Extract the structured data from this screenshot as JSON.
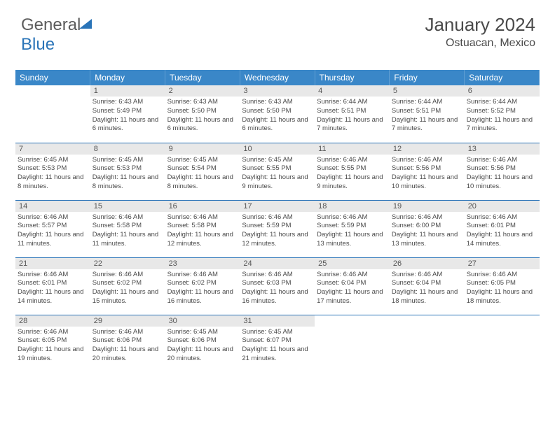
{
  "logo": {
    "part1": "General",
    "part2": "Blue"
  },
  "header": {
    "title": "January 2024",
    "location": "Ostuacan, Mexico"
  },
  "style": {
    "header_bg": "#3a87c8",
    "header_text": "#ffffff",
    "daynum_bg": "#e8e8e8",
    "daynum_text": "#555555",
    "body_text": "#4a4a4a",
    "row_border": "#2a74b8",
    "logo_gray": "#5c5c5c",
    "logo_blue": "#2a74b8",
    "title_fontsize": 26,
    "location_fontsize": 16,
    "dayhead_fontsize": 12,
    "daynum_fontsize": 11,
    "daytext_fontsize": 9.5
  },
  "dayHeaders": [
    "Sunday",
    "Monday",
    "Tuesday",
    "Wednesday",
    "Thursday",
    "Friday",
    "Saturday"
  ],
  "weeks": [
    [
      {
        "num": "",
        "sunrise": "",
        "sunset": "",
        "daylight": ""
      },
      {
        "num": "1",
        "sunrise": "Sunrise: 6:43 AM",
        "sunset": "Sunset: 5:49 PM",
        "daylight": "Daylight: 11 hours and 6 minutes."
      },
      {
        "num": "2",
        "sunrise": "Sunrise: 6:43 AM",
        "sunset": "Sunset: 5:50 PM",
        "daylight": "Daylight: 11 hours and 6 minutes."
      },
      {
        "num": "3",
        "sunrise": "Sunrise: 6:43 AM",
        "sunset": "Sunset: 5:50 PM",
        "daylight": "Daylight: 11 hours and 6 minutes."
      },
      {
        "num": "4",
        "sunrise": "Sunrise: 6:44 AM",
        "sunset": "Sunset: 5:51 PM",
        "daylight": "Daylight: 11 hours and 7 minutes."
      },
      {
        "num": "5",
        "sunrise": "Sunrise: 6:44 AM",
        "sunset": "Sunset: 5:51 PM",
        "daylight": "Daylight: 11 hours and 7 minutes."
      },
      {
        "num": "6",
        "sunrise": "Sunrise: 6:44 AM",
        "sunset": "Sunset: 5:52 PM",
        "daylight": "Daylight: 11 hours and 7 minutes."
      }
    ],
    [
      {
        "num": "7",
        "sunrise": "Sunrise: 6:45 AM",
        "sunset": "Sunset: 5:53 PM",
        "daylight": "Daylight: 11 hours and 8 minutes."
      },
      {
        "num": "8",
        "sunrise": "Sunrise: 6:45 AM",
        "sunset": "Sunset: 5:53 PM",
        "daylight": "Daylight: 11 hours and 8 minutes."
      },
      {
        "num": "9",
        "sunrise": "Sunrise: 6:45 AM",
        "sunset": "Sunset: 5:54 PM",
        "daylight": "Daylight: 11 hours and 8 minutes."
      },
      {
        "num": "10",
        "sunrise": "Sunrise: 6:45 AM",
        "sunset": "Sunset: 5:55 PM",
        "daylight": "Daylight: 11 hours and 9 minutes."
      },
      {
        "num": "11",
        "sunrise": "Sunrise: 6:46 AM",
        "sunset": "Sunset: 5:55 PM",
        "daylight": "Daylight: 11 hours and 9 minutes."
      },
      {
        "num": "12",
        "sunrise": "Sunrise: 6:46 AM",
        "sunset": "Sunset: 5:56 PM",
        "daylight": "Daylight: 11 hours and 10 minutes."
      },
      {
        "num": "13",
        "sunrise": "Sunrise: 6:46 AM",
        "sunset": "Sunset: 5:56 PM",
        "daylight": "Daylight: 11 hours and 10 minutes."
      }
    ],
    [
      {
        "num": "14",
        "sunrise": "Sunrise: 6:46 AM",
        "sunset": "Sunset: 5:57 PM",
        "daylight": "Daylight: 11 hours and 11 minutes."
      },
      {
        "num": "15",
        "sunrise": "Sunrise: 6:46 AM",
        "sunset": "Sunset: 5:58 PM",
        "daylight": "Daylight: 11 hours and 11 minutes."
      },
      {
        "num": "16",
        "sunrise": "Sunrise: 6:46 AM",
        "sunset": "Sunset: 5:58 PM",
        "daylight": "Daylight: 11 hours and 12 minutes."
      },
      {
        "num": "17",
        "sunrise": "Sunrise: 6:46 AM",
        "sunset": "Sunset: 5:59 PM",
        "daylight": "Daylight: 11 hours and 12 minutes."
      },
      {
        "num": "18",
        "sunrise": "Sunrise: 6:46 AM",
        "sunset": "Sunset: 5:59 PM",
        "daylight": "Daylight: 11 hours and 13 minutes."
      },
      {
        "num": "19",
        "sunrise": "Sunrise: 6:46 AM",
        "sunset": "Sunset: 6:00 PM",
        "daylight": "Daylight: 11 hours and 13 minutes."
      },
      {
        "num": "20",
        "sunrise": "Sunrise: 6:46 AM",
        "sunset": "Sunset: 6:01 PM",
        "daylight": "Daylight: 11 hours and 14 minutes."
      }
    ],
    [
      {
        "num": "21",
        "sunrise": "Sunrise: 6:46 AM",
        "sunset": "Sunset: 6:01 PM",
        "daylight": "Daylight: 11 hours and 14 minutes."
      },
      {
        "num": "22",
        "sunrise": "Sunrise: 6:46 AM",
        "sunset": "Sunset: 6:02 PM",
        "daylight": "Daylight: 11 hours and 15 minutes."
      },
      {
        "num": "23",
        "sunrise": "Sunrise: 6:46 AM",
        "sunset": "Sunset: 6:02 PM",
        "daylight": "Daylight: 11 hours and 16 minutes."
      },
      {
        "num": "24",
        "sunrise": "Sunrise: 6:46 AM",
        "sunset": "Sunset: 6:03 PM",
        "daylight": "Daylight: 11 hours and 16 minutes."
      },
      {
        "num": "25",
        "sunrise": "Sunrise: 6:46 AM",
        "sunset": "Sunset: 6:04 PM",
        "daylight": "Daylight: 11 hours and 17 minutes."
      },
      {
        "num": "26",
        "sunrise": "Sunrise: 6:46 AM",
        "sunset": "Sunset: 6:04 PM",
        "daylight": "Daylight: 11 hours and 18 minutes."
      },
      {
        "num": "27",
        "sunrise": "Sunrise: 6:46 AM",
        "sunset": "Sunset: 6:05 PM",
        "daylight": "Daylight: 11 hours and 18 minutes."
      }
    ],
    [
      {
        "num": "28",
        "sunrise": "Sunrise: 6:46 AM",
        "sunset": "Sunset: 6:05 PM",
        "daylight": "Daylight: 11 hours and 19 minutes."
      },
      {
        "num": "29",
        "sunrise": "Sunrise: 6:46 AM",
        "sunset": "Sunset: 6:06 PM",
        "daylight": "Daylight: 11 hours and 20 minutes."
      },
      {
        "num": "30",
        "sunrise": "Sunrise: 6:45 AM",
        "sunset": "Sunset: 6:06 PM",
        "daylight": "Daylight: 11 hours and 20 minutes."
      },
      {
        "num": "31",
        "sunrise": "Sunrise: 6:45 AM",
        "sunset": "Sunset: 6:07 PM",
        "daylight": "Daylight: 11 hours and 21 minutes."
      },
      {
        "num": "",
        "sunrise": "",
        "sunset": "",
        "daylight": ""
      },
      {
        "num": "",
        "sunrise": "",
        "sunset": "",
        "daylight": ""
      },
      {
        "num": "",
        "sunrise": "",
        "sunset": "",
        "daylight": ""
      }
    ]
  ]
}
